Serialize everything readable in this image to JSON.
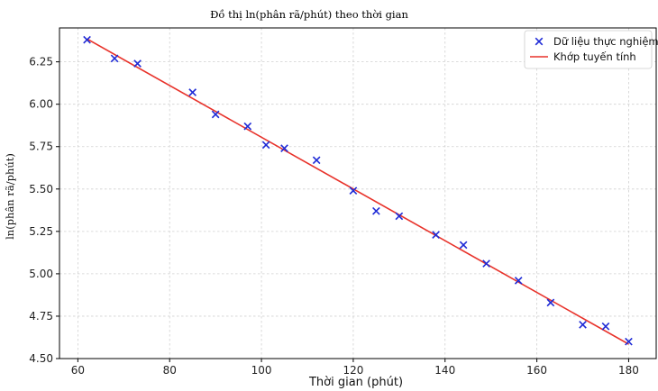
{
  "chart_data": {
    "type": "scatter",
    "title": "Đồ thị ln(phân rã/phút) theo thời gian",
    "xlabel": "Thời gian (phút)",
    "ylabel": "ln(phân rã/phút)",
    "xlim": [
      56,
      186
    ],
    "ylim": [
      4.5,
      6.45
    ],
    "xticks": [
      60,
      80,
      100,
      120,
      140,
      160,
      180
    ],
    "yticks": [
      4.5,
      4.75,
      5.0,
      5.25,
      5.5,
      5.75,
      6.0,
      6.25
    ],
    "xtick_labels": [
      "60",
      "80",
      "100",
      "120",
      "140",
      "160",
      "180"
    ],
    "ytick_labels": [
      "4.50",
      "4.75",
      "5.00",
      "5.25",
      "5.50",
      "5.75",
      "6.00",
      "6.25"
    ],
    "grid": true,
    "legend_position": "top-right",
    "series": [
      {
        "name": "Dữ liệu thực nghiệm",
        "kind": "scatter",
        "marker": "x",
        "color": "#1f2bd6",
        "x": [
          62,
          68,
          73,
          85,
          90,
          97,
          101,
          105,
          112,
          120,
          125,
          130,
          138,
          144,
          149,
          156,
          163,
          170,
          175,
          180
        ],
        "y": [
          6.38,
          6.27,
          6.24,
          6.07,
          5.94,
          5.87,
          5.76,
          5.74,
          5.67,
          5.49,
          5.37,
          5.34,
          5.23,
          5.17,
          5.06,
          4.96,
          4.83,
          4.7,
          4.69,
          4.6
        ]
      },
      {
        "name": "Khớp tuyến tính",
        "kind": "line",
        "color": "#e8322a",
        "x": [
          62,
          180
        ],
        "y": [
          6.385,
          4.585
        ]
      }
    ]
  }
}
